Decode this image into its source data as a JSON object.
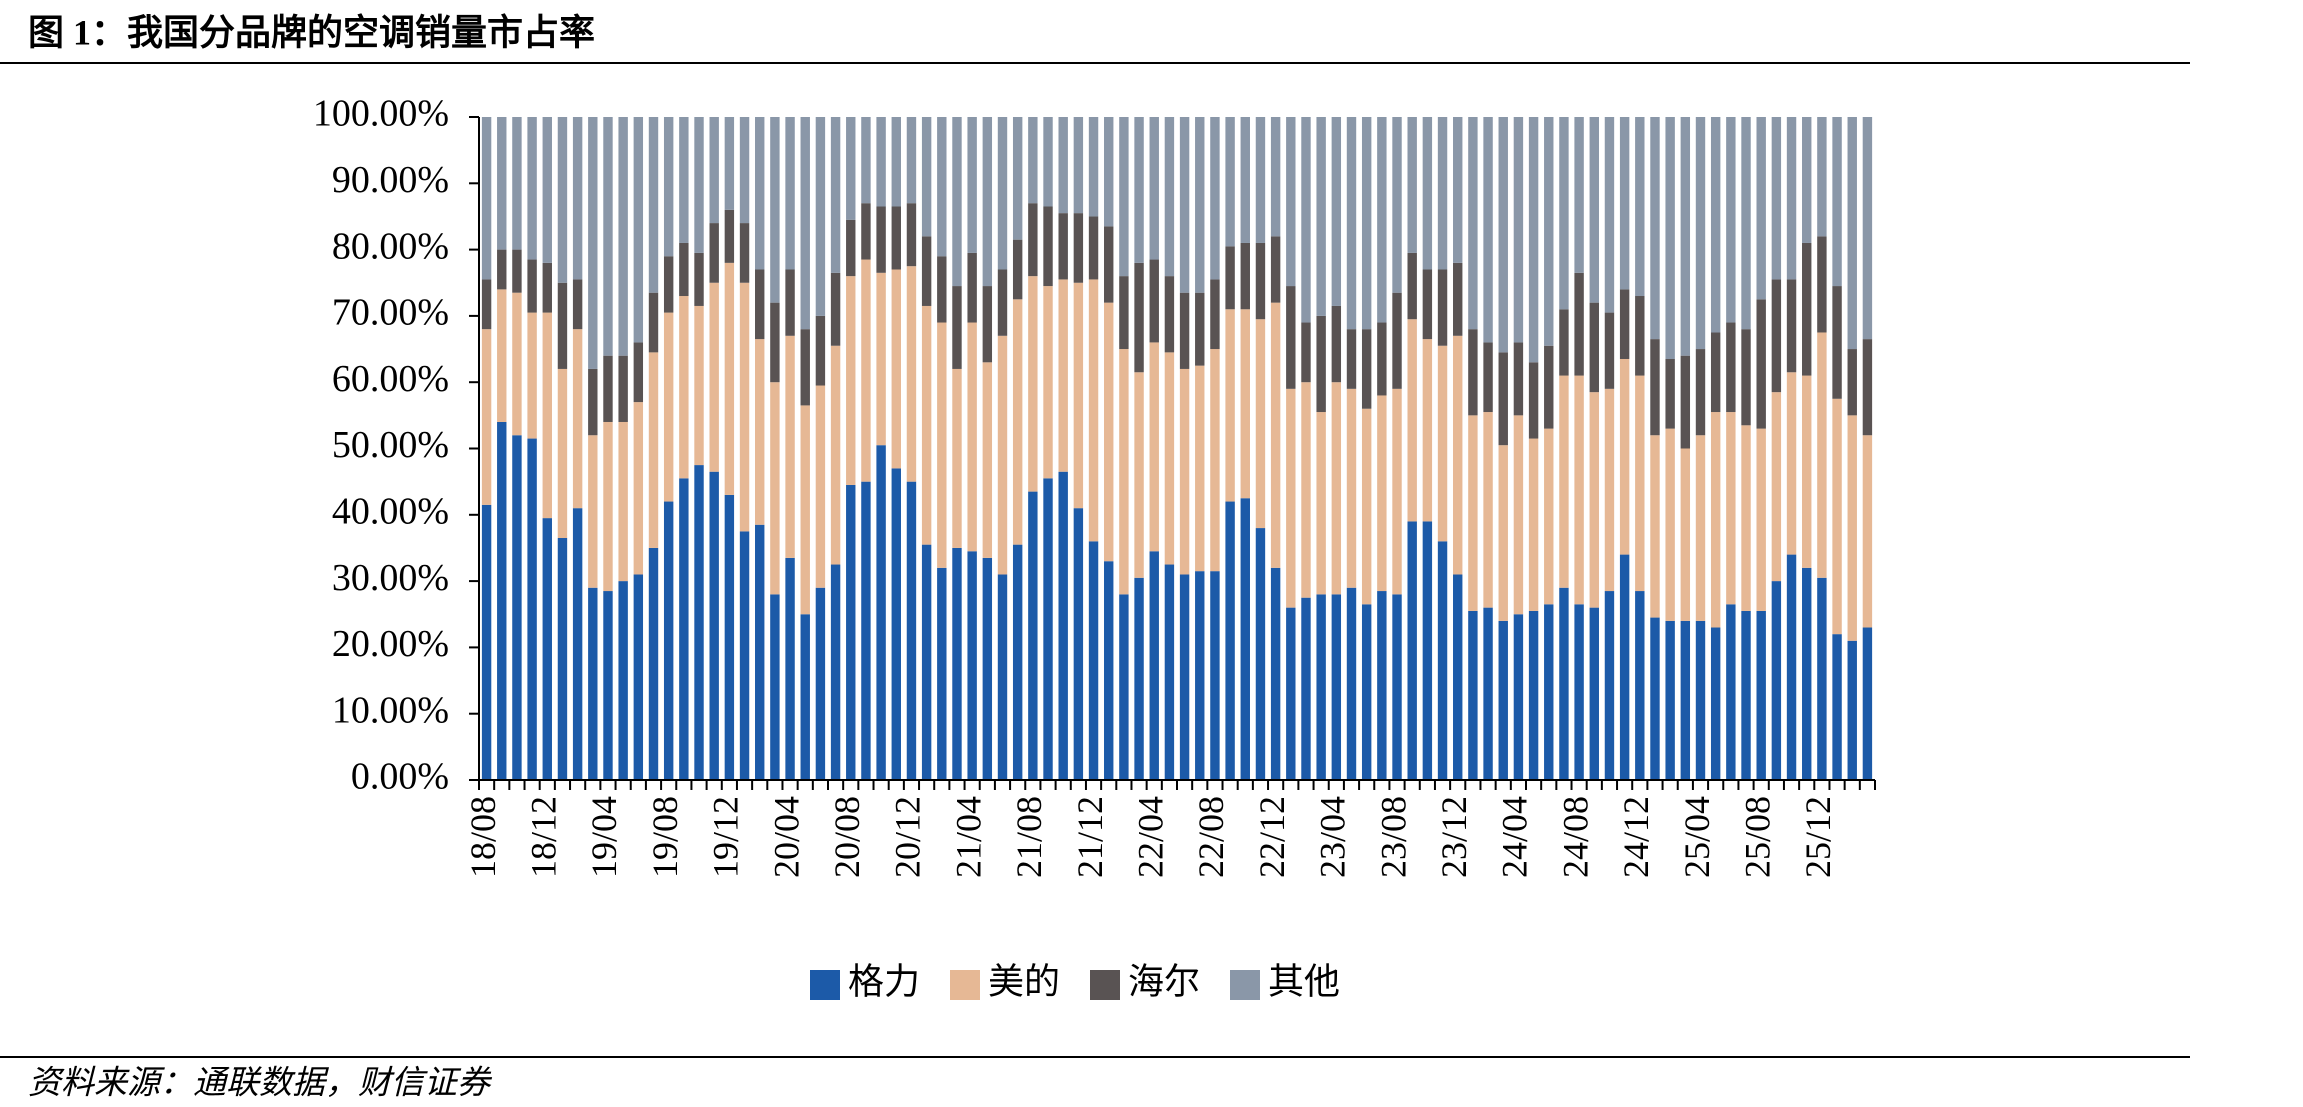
{
  "title": "图 1：我国分品牌的空调销量市占率",
  "source": "资料来源：通联数据，财信证券",
  "chart_data": {
    "type": "stacked_bar",
    "categories": [
      "18/08",
      null,
      null,
      null,
      "18/12",
      null,
      null,
      null,
      "19/04",
      null,
      null,
      null,
      "19/08",
      null,
      null,
      null,
      "19/12",
      null,
      null,
      null,
      "20/04",
      null,
      null,
      null,
      "20/08",
      null,
      null,
      null,
      "20/12",
      null,
      null,
      null,
      "21/04",
      null,
      null,
      null,
      "21/08",
      null,
      null,
      null,
      "21/12",
      null,
      null,
      null,
      "22/04",
      null,
      null,
      null,
      "22/08",
      null,
      null,
      null,
      "22/12",
      null,
      null,
      null,
      "23/04",
      null,
      null,
      null,
      "23/08",
      null,
      null,
      null,
      "23/12",
      null,
      null,
      null,
      "24/04",
      null,
      null,
      null,
      "24/08",
      null,
      null,
      null,
      "24/12",
      null,
      null,
      null,
      "25/04",
      null,
      null,
      null,
      "25/08",
      null,
      null,
      null,
      "25/12",
      null,
      null,
      null
    ],
    "series": [
      {
        "name": "格力",
        "color": "#1c5aa8",
        "values": [
          41.5,
          54,
          52,
          51.5,
          39.5,
          36.5,
          41,
          29,
          28.5,
          30,
          31,
          35,
          42,
          45.5,
          47.5,
          46.5,
          43,
          37.5,
          38.5,
          28,
          33.5,
          25,
          29,
          32.5,
          44.5,
          45,
          50.5,
          47,
          45,
          35.5,
          32,
          35,
          34.5,
          33.5,
          31,
          35.5,
          43.5,
          45.5,
          46.5,
          41,
          36,
          33,
          28,
          30.5,
          34.5,
          32.5,
          31,
          31.5,
          31.5,
          42,
          42.5,
          38,
          32,
          26,
          27.5,
          28,
          28,
          29,
          26.5,
          28.5,
          28,
          39,
          39,
          36,
          31,
          25.5,
          26,
          24,
          25,
          25.5,
          26.5,
          29,
          26.5,
          26,
          28.5,
          34,
          28.5,
          24.5,
          24,
          24,
          24,
          23,
          26.5,
          25.5,
          25.5,
          30,
          34,
          32,
          30.5,
          22,
          21,
          23
        ]
      },
      {
        "name": "美的",
        "color": "#e6b895",
        "values": [
          26.5,
          20,
          21.5,
          19,
          31,
          25.5,
          27,
          23,
          25.5,
          24,
          26,
          29.5,
          28.5,
          27.5,
          24,
          28.5,
          35,
          37.5,
          28,
          32,
          33.5,
          31.5,
          30.5,
          33,
          31.5,
          33.5,
          26,
          30,
          32.5,
          36,
          37,
          27,
          34.5,
          29.5,
          36,
          37,
          32.5,
          29,
          29,
          34,
          39.5,
          39,
          37,
          31,
          31.5,
          32,
          31,
          31,
          33.5,
          29,
          28.5,
          31.5,
          40,
          33,
          32.5,
          27.5,
          32,
          30,
          29.5,
          29.5,
          31,
          30.5,
          27.5,
          29.5,
          36,
          29.5,
          29.5,
          26.5,
          30,
          26,
          26.5,
          32,
          34.5,
          32.5,
          30.5,
          29.5,
          32.5,
          27.5,
          29,
          26,
          28,
          32.5,
          29,
          28,
          27.5,
          28.5,
          27.5,
          29,
          37,
          35.5,
          34,
          29
        ]
      },
      {
        "name": "海尔",
        "color": "#595353",
        "values": [
          7.5,
          6,
          6.5,
          8,
          7.5,
          13,
          7.5,
          10,
          10,
          10,
          9,
          9,
          8.5,
          8,
          8,
          9,
          8,
          9,
          10.5,
          12,
          10,
          11.5,
          10.5,
          11,
          8.5,
          8.5,
          10,
          9.5,
          9.5,
          10.5,
          10,
          12.5,
          10.5,
          11.5,
          10,
          9,
          11,
          12,
          10,
          10.5,
          9.5,
          11.5,
          11,
          16.5,
          12.5,
          11.5,
          11.5,
          11,
          10.5,
          9.5,
          10,
          11.5,
          10,
          15.5,
          9,
          14.5,
          11.5,
          9,
          12,
          11,
          14.5,
          10,
          10.5,
          11.5,
          11,
          13,
          10.5,
          14,
          11,
          11.5,
          12.5,
          10,
          15.5,
          13.5,
          11.5,
          10.5,
          12,
          14.5,
          10.5,
          14,
          13,
          12,
          13.5,
          14.5,
          19.5,
          17,
          14,
          20,
          14.5,
          17,
          10,
          14.5
        ]
      },
      {
        "name": "其他",
        "color": "#8a97a8",
        "values": [
          24.5,
          20,
          20,
          21.5,
          22,
          25,
          24.5,
          38,
          36,
          36,
          34,
          26.5,
          21,
          19,
          20.5,
          16,
          14,
          16,
          23,
          28,
          23,
          32,
          30,
          23.5,
          15.5,
          13,
          13.5,
          13.5,
          13,
          18,
          21,
          25.5,
          20.5,
          25.5,
          23,
          18.5,
          13,
          13.5,
          14.5,
          14.5,
          15,
          16.5,
          24,
          22,
          21.5,
          24,
          26.5,
          26.5,
          24.5,
          19.5,
          19,
          19,
          18,
          25.5,
          31,
          30,
          28.5,
          32,
          32,
          31,
          26.5,
          20.5,
          23,
          23,
          22,
          32,
          34,
          35.5,
          34,
          37,
          34.5,
          29,
          23.5,
          28,
          29.5,
          26,
          27,
          33.5,
          36.5,
          36,
          35,
          32.5,
          31,
          32,
          27.5,
          24.5,
          24.5,
          19,
          18,
          25.5,
          35,
          33.5
        ]
      }
    ],
    "ylim": [
      0,
      100
    ],
    "yticks": [
      {
        "value": 0,
        "label": "0.00%"
      },
      {
        "value": 10,
        "label": "10.00%"
      },
      {
        "value": 20,
        "label": "20.00%"
      },
      {
        "value": 30,
        "label": "30.00%"
      },
      {
        "value": 40,
        "label": "40.00%"
      },
      {
        "value": 50,
        "label": "50.00%"
      },
      {
        "value": 60,
        "label": "60.00%"
      },
      {
        "value": 70,
        "label": "70.00%"
      },
      {
        "value": 80,
        "label": "80.00%"
      },
      {
        "value": 90,
        "label": "90.00%"
      },
      {
        "value": 100,
        "label": "100.00%"
      }
    ],
    "legend": "bottom"
  }
}
